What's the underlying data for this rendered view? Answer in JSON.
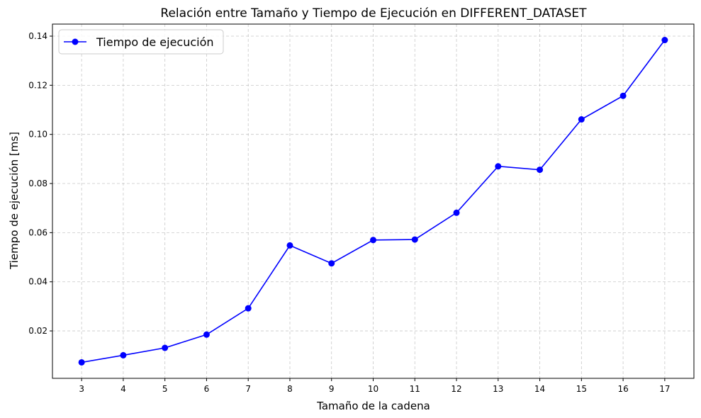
{
  "chart_data": {
    "type": "line",
    "title": "Relación entre Tamaño y Tiempo de Ejecución en DIFFERENT_DATASET",
    "xlabel": "Tamaño de la cadena",
    "ylabel": "Tiempo de ejecución [ms]",
    "x": [
      3,
      4,
      5,
      6,
      7,
      8,
      9,
      10,
      11,
      12,
      13,
      14,
      15,
      16,
      17
    ],
    "x_tick_labels": [
      "3",
      "4",
      "5",
      "6",
      "7",
      "8",
      "9",
      "10",
      "11",
      "12",
      "13",
      "14",
      "15",
      "16",
      "17"
    ],
    "xlim": [
      2.3,
      17.7
    ],
    "ylim": [
      0.0007,
      0.1449
    ],
    "y_ticks": [
      0.02,
      0.04,
      0.06,
      0.08,
      0.1,
      0.12,
      0.14
    ],
    "y_tick_labels": [
      "0.02",
      "0.04",
      "0.06",
      "0.08",
      "0.10",
      "0.12",
      "0.14"
    ],
    "grid": true,
    "grid_style": "dashed",
    "legend_position": "top-left",
    "series": [
      {
        "name": "Tiempo de ejecución",
        "color": "#0000ff",
        "marker": "circle",
        "values": [
          0.0072,
          0.0101,
          0.0131,
          0.0185,
          0.0292,
          0.0548,
          0.0475,
          0.057,
          0.0572,
          0.0681,
          0.087,
          0.0856,
          0.1061,
          0.1157,
          0.1384
        ]
      }
    ]
  }
}
